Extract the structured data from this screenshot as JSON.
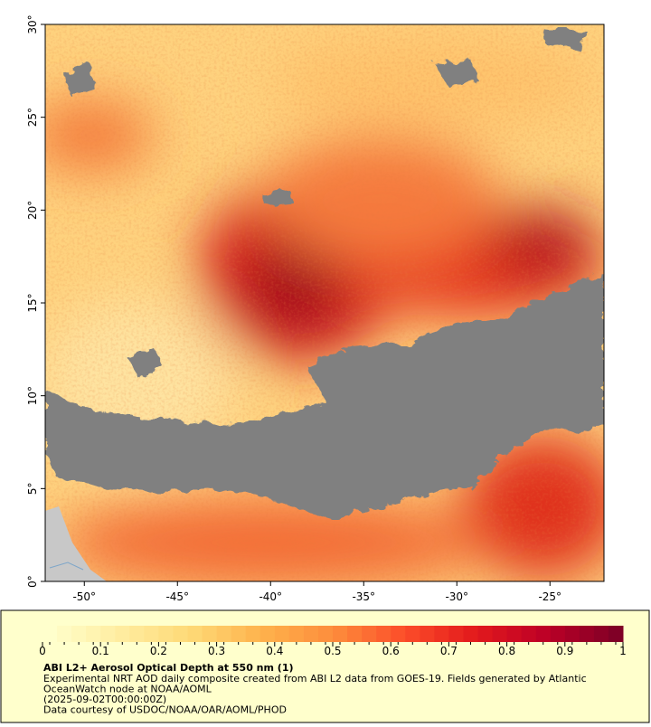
{
  "map": {
    "lon_ticks": [
      {
        "value": -50,
        "label": "-50°"
      },
      {
        "value": -45,
        "label": "-45°"
      },
      {
        "value": -40,
        "label": "-40°"
      },
      {
        "value": -35,
        "label": "-35°"
      },
      {
        "value": -30,
        "label": "-30°"
      },
      {
        "value": -25,
        "label": "-25°"
      }
    ],
    "lat_ticks": [
      {
        "value": 0,
        "label": "0°"
      },
      {
        "value": 5,
        "label": "5°"
      },
      {
        "value": 10,
        "label": "10°"
      },
      {
        "value": 15,
        "label": "15°"
      },
      {
        "value": 20,
        "label": "20°"
      },
      {
        "value": 25,
        "label": "25°"
      },
      {
        "value": 30,
        "label": "30°"
      }
    ],
    "xlim": [
      -52.1,
      -22.1
    ],
    "ylim": [
      0,
      30
    ]
  },
  "colorbar": {
    "range": [
      0,
      1
    ],
    "ticks": [
      0,
      0.1,
      0.2,
      0.3,
      0.4,
      0.5,
      0.6,
      0.7,
      0.8,
      0.9,
      1
    ],
    "colors": [
      "#ffffcc",
      "#ffeda0",
      "#fed976",
      "#feb24c",
      "#fd8d3c",
      "#fc4e2a",
      "#e31a1c",
      "#bd0026",
      "#800026"
    ]
  },
  "caption": {
    "title": "ABI L2+ Aerosol Optical Depth at 550 nm (1)",
    "lines": [
      "Experimental NRT AOD daily composite created from ABI L2 data from GOES-19. Fields generated by Atlantic",
      "OceanWatch node at NOAA/AOML",
      "(2025-09-02T00:00:00Z)",
      "Data courtesy of USDOC/NOAA/OAR/AOML/PHOD"
    ]
  }
}
